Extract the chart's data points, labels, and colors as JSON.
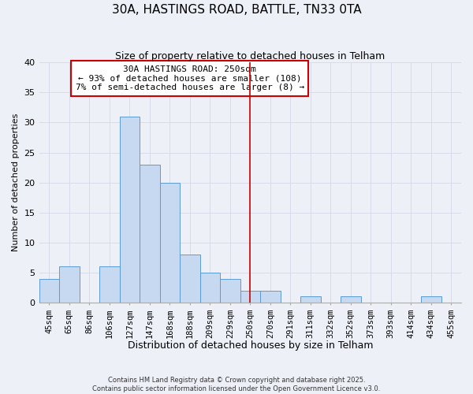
{
  "title": "30A, HASTINGS ROAD, BATTLE, TN33 0TA",
  "subtitle": "Size of property relative to detached houses in Telham",
  "xlabel": "Distribution of detached houses by size in Telham",
  "ylabel": "Number of detached properties",
  "bar_labels": [
    "45sqm",
    "65sqm",
    "86sqm",
    "106sqm",
    "127sqm",
    "147sqm",
    "168sqm",
    "188sqm",
    "209sqm",
    "229sqm",
    "250sqm",
    "270sqm",
    "291sqm",
    "311sqm",
    "332sqm",
    "352sqm",
    "373sqm",
    "393sqm",
    "414sqm",
    "434sqm",
    "455sqm"
  ],
  "bar_values": [
    4,
    6,
    0,
    6,
    31,
    23,
    20,
    8,
    5,
    4,
    2,
    2,
    0,
    1,
    0,
    1,
    0,
    0,
    0,
    1,
    0
  ],
  "bar_color": "#c6d9f0",
  "bar_edge_color": "#5b9bd5",
  "grid_color": "#d8dce8",
  "vline_x_index": 10,
  "vline_color": "#cc0000",
  "annotation_title": "30A HASTINGS ROAD: 250sqm",
  "annotation_line1": "← 93% of detached houses are smaller (108)",
  "annotation_line2": "7% of semi-detached houses are larger (8) →",
  "annotation_box_color": "#ffffff",
  "annotation_box_edge": "#cc0000",
  "ylim": [
    0,
    40
  ],
  "yticks": [
    0,
    5,
    10,
    15,
    20,
    25,
    30,
    35,
    40
  ],
  "footer_line1": "Contains HM Land Registry data © Crown copyright and database right 2025.",
  "footer_line2": "Contains public sector information licensed under the Open Government Licence v3.0.",
  "background_color": "#eef0f8",
  "title_fontsize": 11,
  "subtitle_fontsize": 9,
  "annotation_fontsize": 8,
  "ylabel_fontsize": 8,
  "xlabel_fontsize": 9
}
